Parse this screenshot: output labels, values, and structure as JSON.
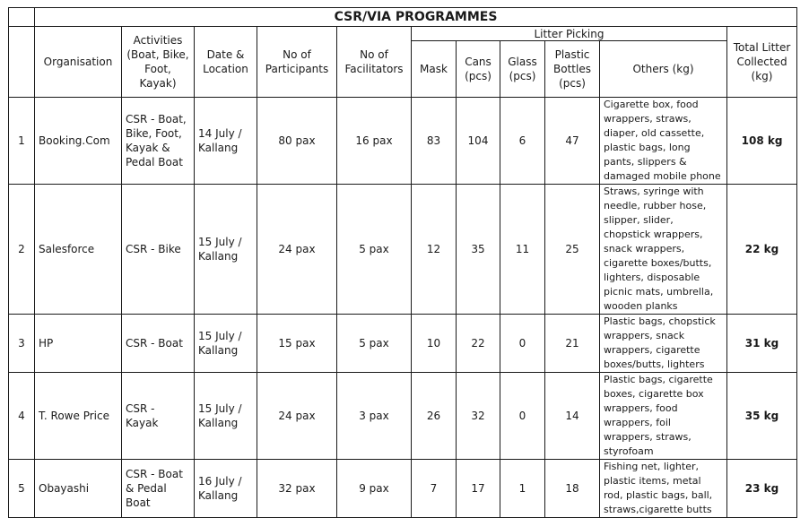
{
  "title": "CSR/VIA PROGRAMMES",
  "litter_group": "Litter Picking",
  "headers": {
    "organisation": "Organisation",
    "activities": "Activities (Boat, Bike, Foot, Kayak)",
    "date_location": "Date & Location",
    "participants": "No of Participants",
    "facilitators": "No of Facilitators",
    "mask": "Mask",
    "cans": "Cans (pcs)",
    "glass": "Glass (pcs)",
    "plastic_bottles": "Plastic Bottles (pcs)",
    "others": "Others (kg)",
    "total": "Total Litter Collected (kg)"
  },
  "rows": [
    {
      "no": "1",
      "organisation": "Booking.Com",
      "activities": "CSR - Boat, Bike, Foot, Kayak & Pedal Boat",
      "date_location": "14 July / Kallang",
      "participants": "80 pax",
      "facilitators": "16 pax",
      "mask": "83",
      "cans": "104",
      "glass": "6",
      "plastic_bottles": "47",
      "others": "Cigarette box, food wrappers, straws, diaper, old cassette, plastic bags, long pants, slippers & damaged mobile phone",
      "total": "108 kg"
    },
    {
      "no": "2",
      "organisation": "Salesforce",
      "activities": "CSR - Bike",
      "date_location": "15 July / Kallang",
      "participants": "24 pax",
      "facilitators": "5 pax",
      "mask": "12",
      "cans": "35",
      "glass": "11",
      "plastic_bottles": "25",
      "others": "Straws, syringe with needle, rubber hose, slipper, slider, chopstick wrappers, snack wrappers, cigarette boxes/butts, lighters, disposable picnic mats, umbrella, wooden planks",
      "total": "22 kg"
    },
    {
      "no": "3",
      "organisation": "HP",
      "activities": "CSR - Boat",
      "date_location": "15 July / Kallang",
      "participants": "15 pax",
      "facilitators": "5 pax",
      "mask": "10",
      "cans": "22",
      "glass": "0",
      "plastic_bottles": "21",
      "others": "Plastic bags, chopstick wrappers, snack wrappers, cigarette boxes/butts, lighters",
      "total": "31 kg"
    },
    {
      "no": "4",
      "organisation": "T. Rowe Price",
      "activities": "CSR - Kayak",
      "date_location": "15 July / Kallang",
      "participants": "24 pax",
      "facilitators": "3 pax",
      "mask": "26",
      "cans": "32",
      "glass": "0",
      "plastic_bottles": "14",
      "others": "Plastic bags, cigarette boxes, cigarette box wrappers, food wrappers, foil wrappers, straws, styrofoam",
      "total": "35 kg"
    },
    {
      "no": "5",
      "organisation": "Obayashi",
      "activities": "CSR - Boat & Pedal Boat",
      "date_location": "16 July / Kallang",
      "participants": "32 pax",
      "facilitators": "9 pax",
      "mask": "7",
      "cans": "17",
      "glass": "1",
      "plastic_bottles": "18",
      "others": "Fishing net, lighter, plastic items, metal rod, plastic bags, ball, straws,cigarette butts",
      "total": "23 kg"
    }
  ]
}
